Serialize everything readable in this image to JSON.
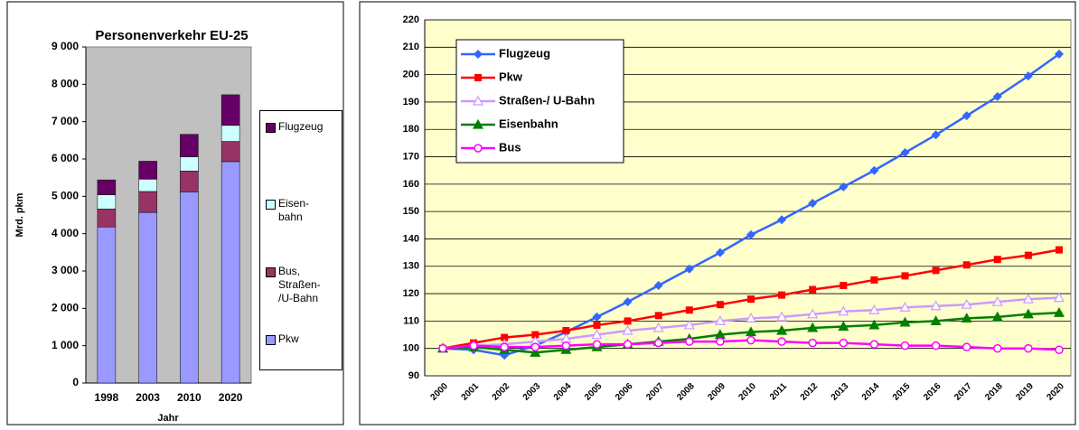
{
  "chart_data": [
    {
      "type": "stacked_bar",
      "title": "Personenverkehr EU-25",
      "y_label": "Mrd. pkm",
      "x_label": "Jahr",
      "categories": [
        "1998",
        "2003",
        "2010",
        "2020"
      ],
      "series": [
        {
          "name": "Pkw",
          "color": "#9999ff",
          "values": [
            4180,
            4570,
            5120,
            5930
          ]
        },
        {
          "name": "Bus, Straßen-/U-Bahn",
          "color": "#993366",
          "values": [
            480,
            560,
            560,
            540
          ]
        },
        {
          "name": "Eisen-bahn",
          "color": "#ccffff",
          "values": [
            380,
            330,
            380,
            430
          ]
        },
        {
          "name": "Flugzeug",
          "color": "#660066",
          "values": [
            400,
            480,
            600,
            820
          ]
        }
      ],
      "ylim": [
        0,
        9000
      ],
      "yticks": [
        0,
        {
          "value": 1000,
          "label": "1 000"
        },
        {
          "value": 2000,
          "label": "2 000"
        },
        {
          "value": 3000,
          "label": "3 000"
        },
        {
          "value": 4000,
          "label": "4 000"
        },
        {
          "value": 5000,
          "label": "5 000"
        },
        {
          "value": 6000,
          "label": "6 000"
        },
        {
          "value": 7000,
          "label": "7 000"
        },
        {
          "value": 8000,
          "label": "8 000"
        },
        {
          "value": 9000,
          "label": "9 000"
        }
      ],
      "plot_background": "#c0c0c0"
    },
    {
      "type": "line",
      "categories": [
        "2000",
        "2001",
        "2002",
        "2003",
        "2004",
        "2005",
        "2006",
        "2007",
        "2008",
        "2009",
        "2010",
        "2011",
        "2012",
        "2013",
        "2014",
        "2015",
        "2016",
        "2017",
        "2018",
        "2019",
        "2020"
      ],
      "series": [
        {
          "name": "Flugzeug",
          "color": "#3366ff",
          "marker": "diamond",
          "values": [
            100,
            99.5,
            97.5,
            101,
            106,
            111.5,
            117,
            123,
            129,
            135,
            141.5,
            147,
            153,
            159,
            165,
            171.5,
            178,
            185,
            192,
            199.5,
            207.5
          ]
        },
        {
          "name": "Pkw",
          "color": "#ff0000",
          "marker": "square",
          "values": [
            100,
            102,
            104,
            105,
            106.5,
            108.5,
            110,
            112,
            114,
            116,
            118,
            119.5,
            121.5,
            123,
            125,
            126.5,
            128.5,
            130.5,
            132.5,
            134,
            136
          ]
        },
        {
          "name": "Straßen-/ U-Bahn",
          "color": "#cc99ff",
          "marker": "triangle-open",
          "values": [
            100,
            101,
            101.5,
            102.5,
            103.5,
            105,
            106.5,
            107.5,
            108.5,
            110,
            111,
            111.5,
            112.5,
            113.5,
            114,
            115,
            115.5,
            116,
            117,
            118,
            118.5
          ]
        },
        {
          "name": "Eisenbahn",
          "color": "#008000",
          "marker": "triangle",
          "values": [
            100,
            100.5,
            99.5,
            98.5,
            99.5,
            100.5,
            101.5,
            102.5,
            103.5,
            105,
            106,
            106.5,
            107.5,
            108,
            108.5,
            109.5,
            110,
            111,
            111.5,
            112.5,
            113
          ]
        },
        {
          "name": "Bus",
          "color": "#ff00ff",
          "marker": "circle-open",
          "values": [
            100,
            101,
            100.5,
            100.5,
            101,
            101.5,
            101.5,
            102,
            102.5,
            102.5,
            103,
            102.5,
            102,
            102,
            101.5,
            101,
            101,
            100.5,
            100,
            100,
            99.5
          ]
        }
      ],
      "ylim": [
        90,
        220
      ],
      "yticks": [
        90,
        100,
        110,
        120,
        130,
        140,
        150,
        160,
        170,
        180,
        190,
        200,
        210,
        220
      ],
      "grid": true,
      "plot_background": "#ffffcc"
    }
  ]
}
